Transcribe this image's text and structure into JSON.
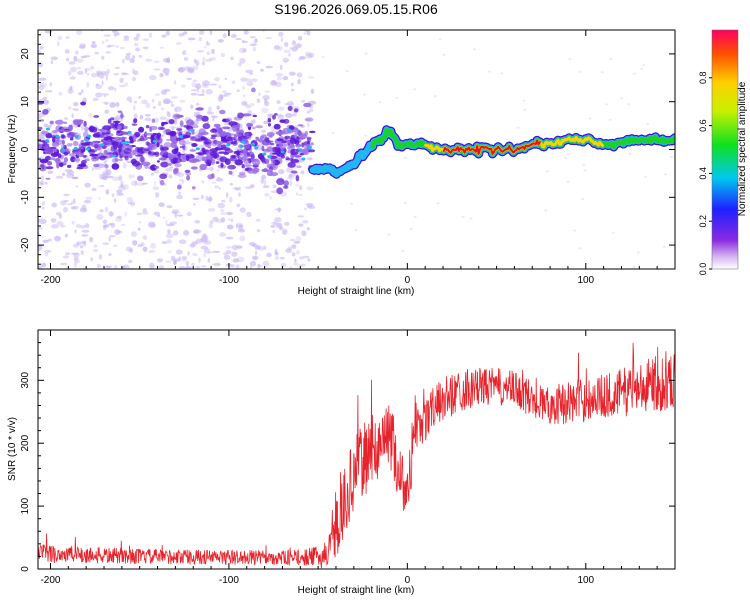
{
  "title": "S196.2026.069.05.15.R06",
  "colors": {
    "snr_line": "#e8222a",
    "ridge_high": "#e8101e",
    "ridge_mid": "#19d12f",
    "ridge_low": "#21b7f0",
    "noise_strong": "#5a16d8",
    "noise_weak": "#cab6f5"
  },
  "chart_data": [
    {
      "type": "heatmap",
      "title": "S196.2026.069.05.15.R06",
      "xlabel": "Height of straight line (km)",
      "ylabel": "Frequency (Hz)",
      "xlim": [
        -207,
        150
      ],
      "ylim": [
        -25,
        25
      ],
      "xticks": [
        {
          "value": -200,
          "label": "-200"
        },
        {
          "value": -100,
          "label": "-100"
        },
        {
          "value": 0,
          "label": "0"
        },
        {
          "value": 100,
          "label": "100"
        }
      ],
      "yticks": [
        {
          "value": -20,
          "label": "-20"
        },
        {
          "value": -10,
          "label": "-10"
        },
        {
          "value": 0,
          "label": "0"
        },
        {
          "value": 10,
          "label": "10"
        },
        {
          "value": 20,
          "label": "20"
        }
      ],
      "colorbar": {
        "label": "Normalized spectral amplitude",
        "range": [
          0,
          1
        ],
        "ticks": [
          {
            "value": 0.0,
            "label": "0.0"
          },
          {
            "value": 0.2,
            "label": "0.2"
          },
          {
            "value": 0.4,
            "label": "0.4"
          },
          {
            "value": 0.6,
            "label": "0.6"
          },
          {
            "value": 0.8,
            "label": "0.8"
          }
        ]
      },
      "ridge": {
        "description": "dominant frequency vs height",
        "x": [
          -53,
          -45,
          -40,
          -35,
          -30,
          -25,
          -20,
          -15,
          -10,
          -5,
          0,
          10,
          20,
          40,
          60,
          70,
          80,
          90,
          100,
          110,
          130,
          150
        ],
        "freq": [
          -4,
          -4,
          -5,
          -4,
          -3,
          -1,
          1,
          2,
          4,
          1,
          1,
          1,
          0,
          0,
          0,
          1,
          1,
          2,
          2,
          1,
          2,
          2
        ],
        "amplitude": [
          0.3,
          0.35,
          0.3,
          0.3,
          0.35,
          0.4,
          0.45,
          0.5,
          0.45,
          0.5,
          0.55,
          0.6,
          0.7,
          0.85,
          0.9,
          0.75,
          0.65,
          0.7,
          0.65,
          0.6,
          0.55,
          0.5
        ]
      },
      "noise_region": {
        "x_range": [
          -207,
          -53
        ],
        "band_center_freq": 1,
        "band_halfwidth": 5,
        "amplitude": 0.15
      }
    },
    {
      "type": "line",
      "xlabel": "Height of straight line (km)",
      "ylabel": "SNR (10 * v/v)",
      "xlim": [
        -207,
        150
      ],
      "ylim": [
        0,
        380
      ],
      "xticks": [
        {
          "value": -200,
          "label": "-200"
        },
        {
          "value": -100,
          "label": "-100"
        },
        {
          "value": 0,
          "label": "0"
        },
        {
          "value": 100,
          "label": "100"
        }
      ],
      "yticks": [
        {
          "value": 0,
          "label": "0"
        },
        {
          "value": 100,
          "label": "100"
        },
        {
          "value": 200,
          "label": "200"
        },
        {
          "value": 300,
          "label": "300"
        }
      ],
      "series": [
        {
          "name": "SNR",
          "x": [
            -207,
            -180,
            -150,
            -120,
            -90,
            -60,
            -45,
            -40,
            -35,
            -30,
            -25,
            -20,
            -15,
            -10,
            -5,
            0,
            5,
            10,
            15,
            20,
            30,
            40,
            50,
            60,
            70,
            80,
            90,
            100,
            110,
            120,
            130,
            140,
            150
          ],
          "mean": [
            25,
            22,
            20,
            19,
            18,
            18,
            20,
            60,
            110,
            150,
            170,
            190,
            200,
            220,
            160,
            120,
            230,
            240,
            255,
            270,
            285,
            290,
            290,
            285,
            270,
            260,
            265,
            270,
            275,
            280,
            290,
            295,
            300
          ],
          "spread": [
            15,
            14,
            12,
            12,
            12,
            12,
            20,
            45,
            55,
            60,
            60,
            55,
            55,
            55,
            50,
            45,
            45,
            40,
            35,
            35,
            35,
            30,
            30,
            30,
            30,
            30,
            35,
            35,
            35,
            40,
            40,
            45,
            45
          ]
        }
      ]
    }
  ]
}
